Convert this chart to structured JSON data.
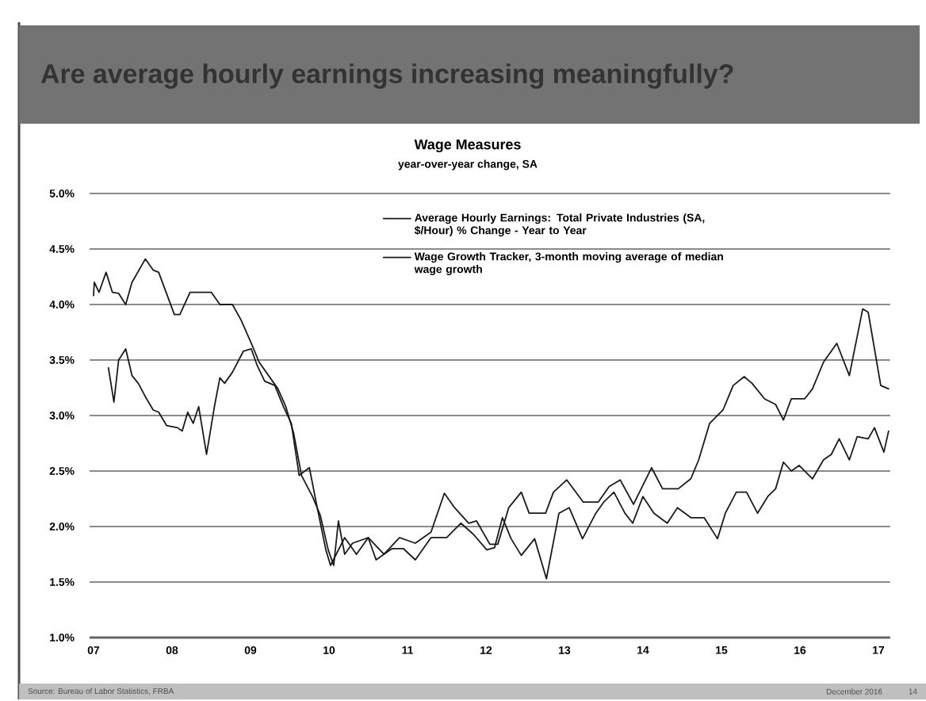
{
  "chart_data": {
    "type": "line",
    "title": "Are average hourly earnings increasing meaningfully?",
    "subtitle": "Wage Measures",
    "annotations": [
      "year-over-year change, SA",
      "Source: Bureau of Labor Statistics, FRBA",
      "December 2016",
      "14"
    ],
    "series": [
      {
        "name": "Average Hourly Earnings: Total Private Industries (SA, $/Hour)    % Change - Year to Year",
        "color": "#1a1a1a",
        "x": [
          7.19,
          7.26,
          7.32,
          7.41,
          7.49,
          7.57,
          7.66,
          7.76,
          7.83,
          7.93,
          8.07,
          8.13,
          8.2,
          8.27,
          8.34,
          8.44,
          8.54,
          8.61,
          8.67,
          8.77,
          8.91,
          9.01,
          9.08,
          9.18,
          9.31,
          9.42,
          9.52,
          9.62,
          9.75,
          9.85,
          9.96,
          10.02,
          10.2,
          10.35,
          10.5,
          10.6,
          10.8,
          10.95,
          11.1,
          11.3,
          11.5,
          11.68,
          11.84,
          12.01,
          12.11,
          12.21,
          12.32,
          12.45,
          12.62,
          12.77,
          12.93,
          13.06,
          13.23,
          13.4,
          13.5,
          13.63,
          13.77,
          13.87,
          14.0,
          14.14,
          14.31,
          14.44,
          14.61,
          14.78,
          14.95,
          15.05,
          15.19,
          15.32,
          15.46,
          15.59,
          15.69,
          15.79,
          15.89,
          15.99,
          16.16,
          16.3,
          16.4,
          16.5,
          16.63,
          16.73,
          16.87,
          16.95,
          17.07,
          17.13
        ],
        "values": [
          3.43,
          3.12,
          3.5,
          3.6,
          3.36,
          3.29,
          3.17,
          3.05,
          3.03,
          2.91,
          2.89,
          2.86,
          3.03,
          2.93,
          3.08,
          2.65,
          3.08,
          3.34,
          3.29,
          3.39,
          3.58,
          3.6,
          3.46,
          3.31,
          3.27,
          3.08,
          2.93,
          2.46,
          2.53,
          2.17,
          1.79,
          1.65,
          1.9,
          1.75,
          1.9,
          1.7,
          1.8,
          1.8,
          1.7,
          1.9,
          1.9,
          2.03,
          1.93,
          1.79,
          1.81,
          2.08,
          1.89,
          1.74,
          1.89,
          1.53,
          2.12,
          2.17,
          1.89,
          2.12,
          2.22,
          2.31,
          2.12,
          2.03,
          2.27,
          2.12,
          2.03,
          2.17,
          2.08,
          2.08,
          1.89,
          2.12,
          2.31,
          2.31,
          2.12,
          2.27,
          2.34,
          2.58,
          2.5,
          2.55,
          2.43,
          2.6,
          2.65,
          2.79,
          2.6,
          2.81,
          2.79,
          2.89,
          2.67,
          2.86
        ]
      },
      {
        "name": "Wage Growth Tracker, 3-month moving average of median wage growth",
        "color": "#1a1a1a",
        "x": [
          7.0,
          7.01,
          7.07,
          7.16,
          7.24,
          7.32,
          7.41,
          7.49,
          7.66,
          7.76,
          7.83,
          8.03,
          8.1,
          8.23,
          8.5,
          8.61,
          8.77,
          8.88,
          9.01,
          9.11,
          9.25,
          9.35,
          9.45,
          9.55,
          9.65,
          9.79,
          9.89,
          9.99,
          10.06,
          10.12,
          10.2,
          10.3,
          10.5,
          10.7,
          10.9,
          11.1,
          11.3,
          11.47,
          11.6,
          11.78,
          11.88,
          12.05,
          12.15,
          12.29,
          12.45,
          12.55,
          12.76,
          12.86,
          13.03,
          13.24,
          13.43,
          13.57,
          13.71,
          13.88,
          14.11,
          14.25,
          14.45,
          14.61,
          14.71,
          14.85,
          15.02,
          15.15,
          15.29,
          15.39,
          15.55,
          15.69,
          15.79,
          15.89,
          16.06,
          16.16,
          16.3,
          16.47,
          16.63,
          16.8,
          16.87,
          17.03,
          17.13
        ],
        "values": [
          4.08,
          4.2,
          4.11,
          4.29,
          4.11,
          4.1,
          4.0,
          4.2,
          4.41,
          4.31,
          4.29,
          3.91,
          3.91,
          4.11,
          4.11,
          4.0,
          4.0,
          3.86,
          3.65,
          3.48,
          3.34,
          3.24,
          3.08,
          2.84,
          2.46,
          2.27,
          2.1,
          1.79,
          1.65,
          2.05,
          1.75,
          1.85,
          1.9,
          1.75,
          1.9,
          1.85,
          1.95,
          2.3,
          2.17,
          2.03,
          2.05,
          1.84,
          1.84,
          2.17,
          2.31,
          2.12,
          2.12,
          2.31,
          2.42,
          2.22,
          2.22,
          2.36,
          2.42,
          2.2,
          2.53,
          2.34,
          2.34,
          2.43,
          2.6,
          2.93,
          3.05,
          3.27,
          3.35,
          3.29,
          3.15,
          3.1,
          2.96,
          3.15,
          3.15,
          3.24,
          3.48,
          3.65,
          3.36,
          3.96,
          3.93,
          3.27,
          3.24
        ]
      }
    ],
    "xlim": [
      6.95,
      17.15
    ],
    "ylim": [
      1.0,
      5.0
    ],
    "xticks": [
      {
        "value": 7,
        "label": "07"
      },
      {
        "value": 8,
        "label": "08"
      },
      {
        "value": 9,
        "label": "09"
      },
      10,
      11,
      12,
      13,
      14,
      15,
      16,
      17
    ],
    "yticks": [
      {
        "value": 1.0,
        "label": "1.0%"
      },
      {
        "value": 1.5,
        "label": "1.5%"
      },
      {
        "value": 2.0,
        "label": "2.0%"
      },
      {
        "value": 2.5,
        "label": "2.5%"
      },
      {
        "value": 3.0,
        "label": "3.0%"
      },
      {
        "value": 3.5,
        "label": "3.5%"
      },
      {
        "value": 4.0,
        "label": "4.0%"
      },
      {
        "value": 4.5,
        "label": "4.5%"
      },
      {
        "value": 5.0,
        "label": "5.0%"
      }
    ],
    "grid": "y",
    "legend": "top"
  }
}
